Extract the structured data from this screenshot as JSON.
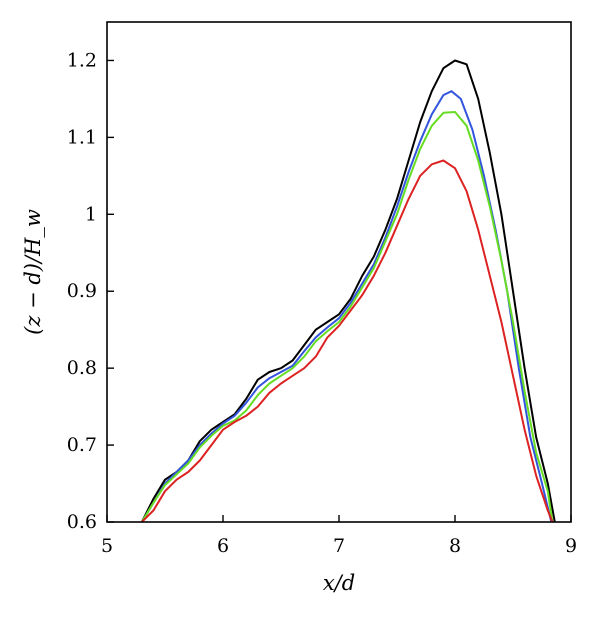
{
  "chart_data": {
    "type": "line",
    "xlabel": "x/d",
    "ylabel": "(z − d)/H_w",
    "xlim": [
      5,
      9
    ],
    "ylim": [
      0.6,
      1.25
    ],
    "xticks": [
      "5",
      "6",
      "7",
      "8",
      "9"
    ],
    "yticks": [
      "0.6",
      "0.7",
      "0.8",
      "0.9",
      "1",
      "1.1",
      "1.2"
    ],
    "grid": false,
    "legend": "none",
    "series": [
      {
        "color": "#000000",
        "points": [
          [
            5.3,
            0.6
          ],
          [
            5.4,
            0.63
          ],
          [
            5.5,
            0.655
          ],
          [
            5.6,
            0.665
          ],
          [
            5.7,
            0.68
          ],
          [
            5.8,
            0.705
          ],
          [
            5.9,
            0.72
          ],
          [
            6.0,
            0.73
          ],
          [
            6.1,
            0.74
          ],
          [
            6.2,
            0.76
          ],
          [
            6.3,
            0.785
          ],
          [
            6.4,
            0.795
          ],
          [
            6.5,
            0.8
          ],
          [
            6.6,
            0.81
          ],
          [
            6.7,
            0.83
          ],
          [
            6.8,
            0.85
          ],
          [
            6.9,
            0.86
          ],
          [
            7.0,
            0.87
          ],
          [
            7.1,
            0.89
          ],
          [
            7.2,
            0.92
          ],
          [
            7.3,
            0.945
          ],
          [
            7.4,
            0.98
          ],
          [
            7.5,
            1.02
          ],
          [
            7.6,
            1.07
          ],
          [
            7.7,
            1.12
          ],
          [
            7.8,
            1.16
          ],
          [
            7.9,
            1.19
          ],
          [
            8.0,
            1.2
          ],
          [
            8.1,
            1.195
          ],
          [
            8.2,
            1.15
          ],
          [
            8.3,
            1.08
          ],
          [
            8.4,
            1.0
          ],
          [
            8.5,
            0.9
          ],
          [
            8.6,
            0.8
          ],
          [
            8.7,
            0.71
          ],
          [
            8.8,
            0.65
          ],
          [
            8.86,
            0.6
          ]
        ]
      },
      {
        "color": "#3355dd",
        "points": [
          [
            5.3,
            0.6
          ],
          [
            5.4,
            0.625
          ],
          [
            5.5,
            0.65
          ],
          [
            5.6,
            0.665
          ],
          [
            5.7,
            0.68
          ],
          [
            5.8,
            0.7
          ],
          [
            5.9,
            0.715
          ],
          [
            6.0,
            0.728
          ],
          [
            6.1,
            0.738
          ],
          [
            6.2,
            0.755
          ],
          [
            6.3,
            0.775
          ],
          [
            6.4,
            0.787
          ],
          [
            6.5,
            0.795
          ],
          [
            6.6,
            0.803
          ],
          [
            6.7,
            0.822
          ],
          [
            6.8,
            0.84
          ],
          [
            6.9,
            0.853
          ],
          [
            7.0,
            0.865
          ],
          [
            7.1,
            0.885
          ],
          [
            7.2,
            0.91
          ],
          [
            7.3,
            0.935
          ],
          [
            7.4,
            0.97
          ],
          [
            7.5,
            1.01
          ],
          [
            7.6,
            1.055
          ],
          [
            7.7,
            1.095
          ],
          [
            7.8,
            1.13
          ],
          [
            7.9,
            1.155
          ],
          [
            7.97,
            1.16
          ],
          [
            8.05,
            1.15
          ],
          [
            8.15,
            1.11
          ],
          [
            8.25,
            1.05
          ],
          [
            8.35,
            0.98
          ],
          [
            8.45,
            0.9
          ],
          [
            8.55,
            0.8
          ],
          [
            8.65,
            0.71
          ],
          [
            8.75,
            0.65
          ],
          [
            8.83,
            0.6
          ]
        ]
      },
      {
        "color": "#66dd22",
        "points": [
          [
            5.3,
            0.6
          ],
          [
            5.4,
            0.625
          ],
          [
            5.5,
            0.648
          ],
          [
            5.6,
            0.662
          ],
          [
            5.7,
            0.676
          ],
          [
            5.8,
            0.697
          ],
          [
            5.9,
            0.712
          ],
          [
            6.0,
            0.725
          ],
          [
            6.1,
            0.732
          ],
          [
            6.2,
            0.745
          ],
          [
            6.3,
            0.765
          ],
          [
            6.4,
            0.78
          ],
          [
            6.5,
            0.79
          ],
          [
            6.6,
            0.8
          ],
          [
            6.7,
            0.815
          ],
          [
            6.8,
            0.835
          ],
          [
            6.9,
            0.848
          ],
          [
            7.0,
            0.86
          ],
          [
            7.1,
            0.88
          ],
          [
            7.2,
            0.905
          ],
          [
            7.3,
            0.93
          ],
          [
            7.4,
            0.965
          ],
          [
            7.5,
            1.0
          ],
          [
            7.6,
            1.045
          ],
          [
            7.7,
            1.085
          ],
          [
            7.8,
            1.115
          ],
          [
            7.9,
            1.132
          ],
          [
            8.0,
            1.133
          ],
          [
            8.1,
            1.115
          ],
          [
            8.2,
            1.07
          ],
          [
            8.3,
            1.01
          ],
          [
            8.4,
            0.94
          ],
          [
            8.5,
            0.86
          ],
          [
            8.6,
            0.77
          ],
          [
            8.7,
            0.69
          ],
          [
            8.8,
            0.64
          ],
          [
            8.84,
            0.6
          ]
        ]
      },
      {
        "color": "#dd2222",
        "points": [
          [
            5.3,
            0.6
          ],
          [
            5.4,
            0.615
          ],
          [
            5.5,
            0.64
          ],
          [
            5.6,
            0.655
          ],
          [
            5.7,
            0.665
          ],
          [
            5.8,
            0.68
          ],
          [
            5.9,
            0.7
          ],
          [
            6.0,
            0.72
          ],
          [
            6.1,
            0.73
          ],
          [
            6.2,
            0.738
          ],
          [
            6.3,
            0.75
          ],
          [
            6.4,
            0.768
          ],
          [
            6.5,
            0.78
          ],
          [
            6.6,
            0.79
          ],
          [
            6.7,
            0.8
          ],
          [
            6.8,
            0.815
          ],
          [
            6.9,
            0.84
          ],
          [
            7.0,
            0.855
          ],
          [
            7.1,
            0.875
          ],
          [
            7.2,
            0.895
          ],
          [
            7.3,
            0.92
          ],
          [
            7.4,
            0.95
          ],
          [
            7.5,
            0.985
          ],
          [
            7.6,
            1.02
          ],
          [
            7.7,
            1.05
          ],
          [
            7.8,
            1.065
          ],
          [
            7.9,
            1.07
          ],
          [
            8.0,
            1.06
          ],
          [
            8.1,
            1.03
          ],
          [
            8.2,
            0.98
          ],
          [
            8.3,
            0.92
          ],
          [
            8.4,
            0.86
          ],
          [
            8.5,
            0.79
          ],
          [
            8.6,
            0.72
          ],
          [
            8.7,
            0.66
          ],
          [
            8.8,
            0.615
          ],
          [
            8.84,
            0.6
          ]
        ]
      }
    ]
  }
}
